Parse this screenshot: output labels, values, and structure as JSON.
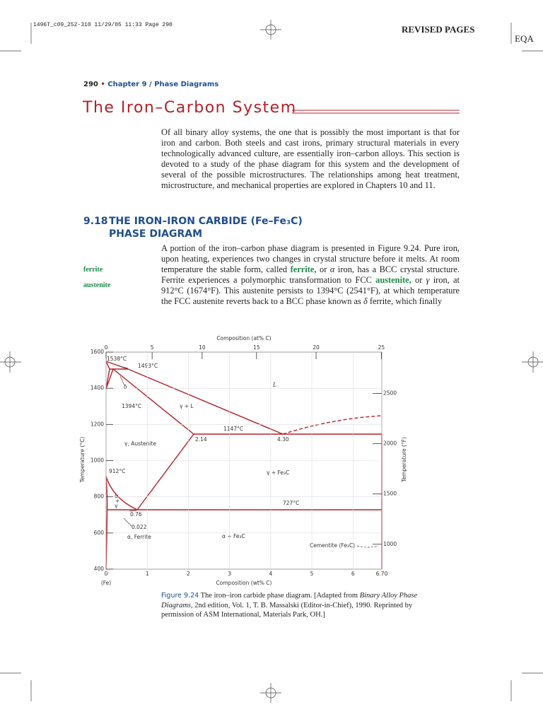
{
  "header": {
    "slug": "1496T_c09_252-310  11/29/05  11:33  Page 290",
    "revised": "REVISED PAGES",
    "eqa": "EQA"
  },
  "running_head": {
    "page": "290",
    "bullet": "•",
    "chapter": "Chapter 9",
    "slash": "/",
    "section": "Phase Diagrams"
  },
  "title": "The Iron–Carbon System",
  "intro": "Of all binary alloy systems, the one that is possibly the most important is that for iron and carbon. Both steels and cast irons, primary structural materials in every technologically advanced culture, are essentially iron–carbon alloys. This section is devoted to a study of the phase diagram for this system and the development of several of the possible microstructures. The relationships among heat treatment, microstructure, and mechanical properties are explored in Chapters 10 and 11.",
  "section": {
    "number": "9.18",
    "line1": "THE IRON–IRON CARBIDE (Fe–Fe₃C)",
    "line2": "PHASE DIAGRAM"
  },
  "margin_terms": [
    "ferrite",
    "austenite"
  ],
  "paragraph": [
    "A portion of the iron–carbon phase diagram is presented in Figure 9.24. Pure iron, upon heating, experiences two changes in crystal structure before it melts. At room temperature the stable form, called ",
    "ferrite,",
    " or ",
    "α",
    " iron, has a BCC crystal structure. Ferrite experiences a polymorphic transformation to FCC ",
    "austenite,",
    " or ",
    "γ",
    " iron, at 912°C (1674°F). This austenite persists to 1394°C (2541°F), at which temperature the FCC austenite reverts back to a BCC phase known as ",
    "δ",
    " ferrite, which finally"
  ],
  "figure": {
    "x_label": "Composition (wt% C)",
    "x_origin_label": "(Fe)",
    "xlim": [
      0,
      6.7
    ],
    "xticks": [
      0,
      1,
      2,
      3,
      4,
      5,
      6,
      {
        "value": 6.7,
        "label": "6.70"
      }
    ],
    "top_label": "Composition (at% C)",
    "top_ticks": [
      0,
      5,
      10,
      15,
      20,
      25
    ],
    "y_label": "Temperature (°C)",
    "ylim": [
      400,
      1600
    ],
    "yticks": [
      400,
      600,
      800,
      1000,
      1200,
      1400,
      1600
    ],
    "y2_label": "Temperature (°F)",
    "y2ticks": [
      1000,
      1500,
      2000,
      2500
    ],
    "annotations": [
      "1538°C",
      "1493°C",
      "1394°C",
      "912°C",
      "1147°C",
      "727°C",
      "2.14",
      "4.30",
      "0.76",
      "0.022",
      "L",
      "γ + L",
      "δ",
      "γ, Austenite",
      "γ + Fe₃C",
      "α + Fe₃C",
      "α, Ferrite",
      "Cementite (Fe₃C)",
      "α",
      "+",
      "γ"
    ],
    "caption": {
      "label": "Figure 9.24",
      "runs": [
        "  The iron–iron carbide phase diagram. [Adapted from ",
        "Binary Alloy Phase Diagrams,",
        " 2nd edition, Vol. 1, T. B. Massalski (Editor-in-Chief), 1990. Reprinted by permission of ASM International, Materials Park, OH.]"
      ]
    }
  }
}
